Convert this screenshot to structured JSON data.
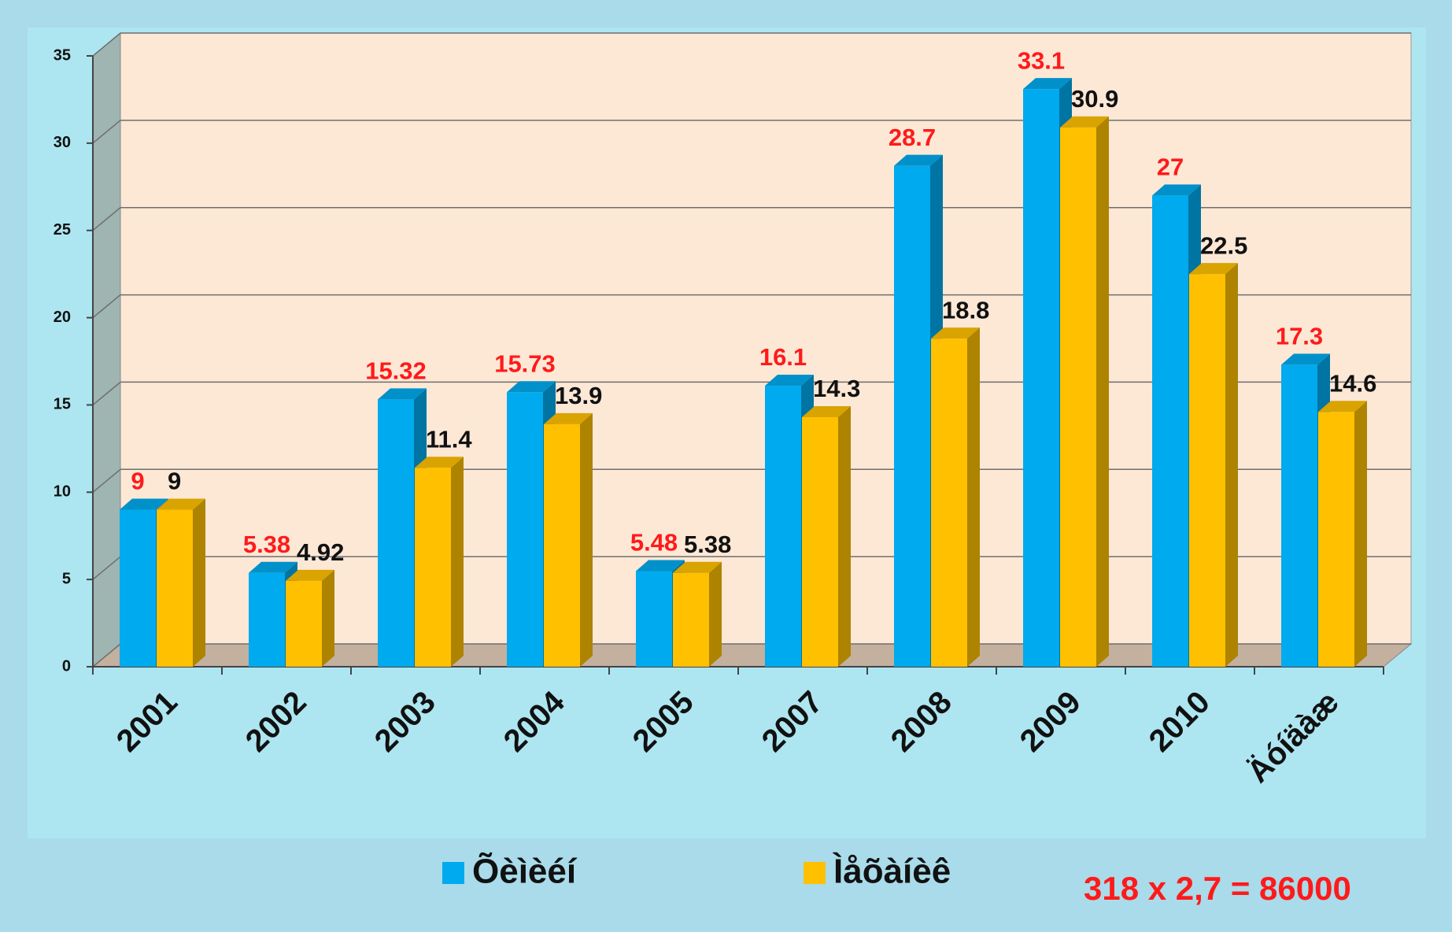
{
  "chart_data": {
    "type": "bar3d",
    "categories": [
      "2001",
      "2002",
      "2003",
      "2004",
      "2005",
      "2007",
      "2008",
      "2009",
      "2010",
      "Äóíäàæ"
    ],
    "series": [
      {
        "name": "Õèìèéí",
        "color": "#00aaee",
        "label_color": "#ff1a1a",
        "values": [
          9,
          5.38,
          15.32,
          15.73,
          5.48,
          16.1,
          28.7,
          33.1,
          27,
          17.3
        ]
      },
      {
        "name": "Ìåõàíèê",
        "color": "#ffc000",
        "label_color": "#111111",
        "values": [
          9,
          4.92,
          11.4,
          13.9,
          5.38,
          14.3,
          18.8,
          30.9,
          22.5,
          14.6
        ]
      }
    ],
    "ylim": [
      0,
      35
    ],
    "yticks": [
      0,
      5,
      10,
      15,
      20,
      25,
      30,
      35
    ],
    "grid": true,
    "annotation": "318 x 2,7 = 86000"
  }
}
